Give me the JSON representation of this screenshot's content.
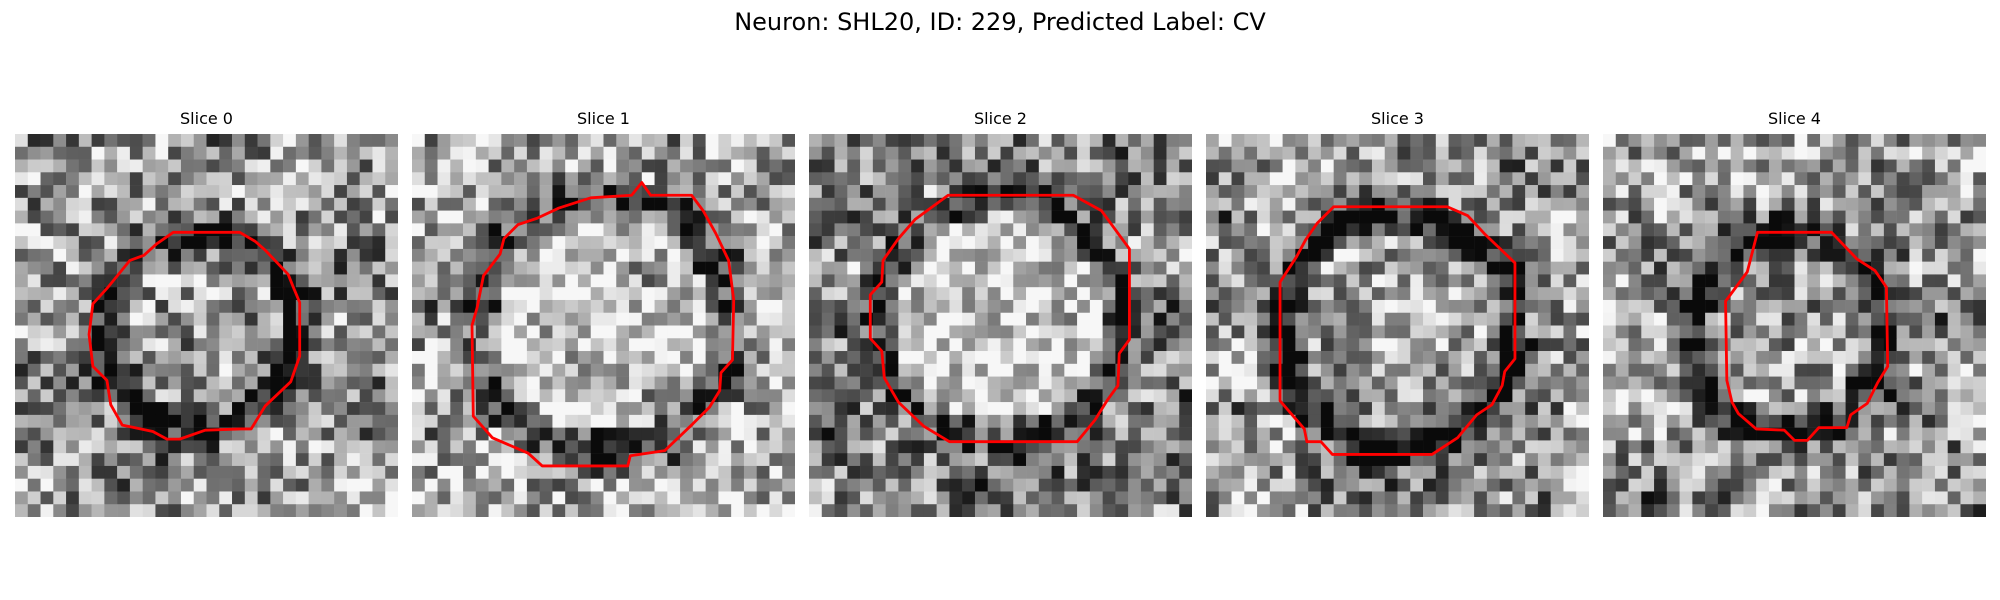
{
  "figure": {
    "title": "Neuron: SHL20, ID: 229, Predicted Label: CV"
  },
  "colors": {
    "contour": "#ff0000",
    "background": "#ffffff"
  },
  "slices": [
    {
      "title": "Slice 0",
      "seed": 11,
      "pattern": "dark-ring-small"
    },
    {
      "title": "Slice 1",
      "seed": 23,
      "pattern": "bright-center-large"
    },
    {
      "title": "Slice 2",
      "seed": 37,
      "pattern": "bright-center-medium"
    },
    {
      "title": "Slice 3",
      "seed": 41,
      "pattern": "dark-ring-medium"
    },
    {
      "title": "Slice 4",
      "seed": 53,
      "pattern": "dark-ring-small"
    }
  ]
}
